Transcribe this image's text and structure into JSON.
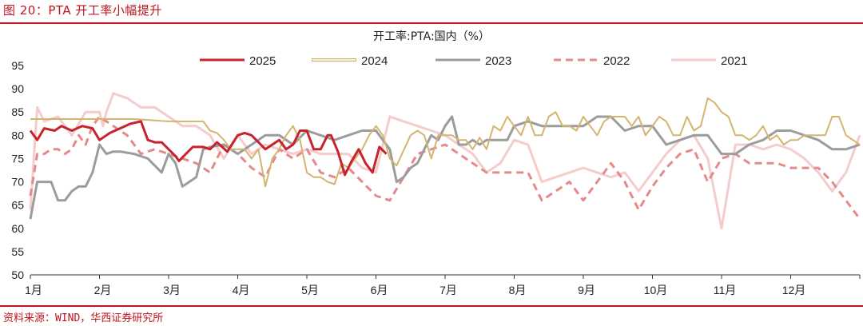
{
  "header": {
    "title": "图 20：PTA 开工率小幅提升"
  },
  "footer": {
    "source": "资料来源：WIND，华西证券研究所"
  },
  "colors": {
    "accent": "#c0141c"
  },
  "chart_data": {
    "type": "line",
    "title": "开工率:PTA:国内（%）",
    "xlabel": "",
    "ylabel": "",
    "ylim": [
      50,
      95
    ],
    "yticks": [
      50,
      55,
      60,
      65,
      70,
      75,
      80,
      85,
      90,
      95
    ],
    "xlim": [
      0,
      12
    ],
    "xticks": [
      "1月",
      "2月",
      "3月",
      "4月",
      "5月",
      "6月",
      "7月",
      "8月",
      "9月",
      "10月",
      "11月",
      "12月"
    ],
    "grid": false,
    "legend_position": "top",
    "series": [
      {
        "name": "2025",
        "color": "#c8232c",
        "style": "solid",
        "width": 3,
        "x": [
          0.0,
          0.1,
          0.2,
          0.35,
          0.45,
          0.6,
          0.75,
          0.9,
          1.0,
          1.15,
          1.3,
          1.45,
          1.6,
          1.7,
          1.8,
          1.9,
          2.0,
          2.1,
          2.15,
          2.25,
          2.35,
          2.5,
          2.6,
          2.7,
          2.85,
          3.0,
          3.1,
          3.2,
          3.4,
          3.5,
          3.6,
          3.7,
          3.8,
          3.9,
          4.0,
          4.1,
          4.2,
          4.3,
          4.35,
          4.45,
          4.55,
          4.65,
          4.75,
          4.85,
          4.95,
          5.05,
          5.15
        ],
        "y": [
          81,
          79,
          81.5,
          81,
          82,
          81,
          82,
          81.5,
          79,
          80.5,
          81.5,
          82.5,
          83,
          79,
          78.5,
          78.5,
          77,
          75.5,
          74.5,
          76,
          77.5,
          77.5,
          77,
          78.5,
          76.5,
          80,
          80.5,
          80,
          77,
          78,
          79,
          77,
          78,
          81,
          81,
          77,
          77,
          80,
          80,
          76.5,
          71.5,
          74.5,
          77,
          74,
          72,
          77.5,
          76
        ]
      },
      {
        "name": "2024",
        "color": "#d4b570",
        "style": "solid",
        "width": 2,
        "x": [
          0.0,
          0.5,
          1.0,
          1.1,
          1.5,
          2.0,
          2.2,
          2.25,
          2.3,
          2.5,
          2.6,
          2.7,
          2.8,
          2.9,
          3.0,
          3.1,
          3.2,
          3.3,
          3.4,
          3.5,
          3.6,
          3.7,
          3.8,
          3.9,
          4.0,
          4.1,
          4.2,
          4.3,
          4.4,
          4.5,
          4.6,
          4.7,
          4.8,
          4.9,
          5.0,
          5.1,
          5.2,
          5.3,
          5.5,
          5.6,
          5.7,
          5.8,
          5.9,
          6.0,
          6.1,
          6.2,
          6.3,
          6.4,
          6.5,
          6.6,
          6.7,
          6.8,
          6.9,
          7.0,
          7.1,
          7.2,
          7.3,
          7.4,
          7.5,
          7.6,
          7.7,
          7.8,
          7.9,
          8.0,
          8.1,
          8.2,
          8.3,
          8.4,
          8.5,
          8.6,
          8.7,
          8.8,
          8.9,
          9.0,
          9.1,
          9.2,
          9.3,
          9.4,
          9.5,
          9.6,
          9.7,
          9.8,
          9.9,
          10.0,
          10.1,
          10.2,
          10.3,
          10.4,
          10.5,
          10.6,
          10.7,
          10.8,
          10.9,
          11.0,
          11.1,
          11.2,
          11.3,
          11.4,
          11.5,
          11.6,
          11.7,
          11.8,
          11.9,
          12.0
        ],
        "y": [
          83.5,
          83.5,
          83.5,
          83.5,
          83.5,
          83,
          83,
          83,
          83,
          83,
          81,
          80.5,
          79,
          77,
          77,
          77,
          75,
          77,
          69,
          75,
          77,
          80,
          82,
          79,
          72,
          71,
          71,
          70,
          69.5,
          74,
          73,
          75,
          77,
          80,
          82,
          80,
          75,
          73.5,
          80,
          81,
          80,
          75,
          80,
          80,
          80,
          79,
          79,
          77,
          79.5,
          77,
          82,
          81,
          84,
          82,
          80,
          84,
          80,
          80,
          84,
          85,
          82,
          82,
          81,
          84,
          82,
          80,
          83,
          84,
          84,
          84,
          82,
          84,
          80,
          82,
          84,
          83,
          80,
          80,
          84,
          81,
          82,
          88,
          87,
          85,
          84,
          80,
          80,
          79,
          80,
          82,
          79,
          80,
          78,
          79,
          79,
          80,
          80,
          80,
          80,
          84,
          84,
          80,
          79,
          78
        ]
      },
      {
        "name": "2023",
        "color": "#9c9c9c",
        "style": "solid",
        "width": 3,
        "x": [
          0.0,
          0.05,
          0.1,
          0.2,
          0.3,
          0.4,
          0.5,
          0.6,
          0.7,
          0.8,
          0.9,
          1.0,
          1.1,
          1.2,
          1.3,
          1.5,
          1.7,
          1.9,
          2.0,
          2.1,
          2.2,
          2.3,
          2.4,
          2.5,
          2.6,
          2.8,
          3.0,
          3.2,
          3.4,
          3.6,
          3.8,
          4.0,
          4.2,
          4.4,
          4.6,
          4.8,
          5.0,
          5.1,
          5.2,
          5.3,
          5.4,
          5.5,
          5.6,
          5.7,
          5.8,
          5.9,
          6.0,
          6.1,
          6.2,
          6.3,
          6.4,
          6.5,
          6.6,
          6.7,
          6.8,
          6.9,
          7.0,
          7.2,
          7.4,
          7.6,
          7.8,
          8.0,
          8.2,
          8.4,
          8.6,
          8.8,
          9.0,
          9.2,
          9.4,
          9.6,
          9.8,
          10.0,
          10.2,
          10.4,
          10.6,
          10.8,
          11.0,
          11.2,
          11.4,
          11.6,
          11.8,
          12.0
        ],
        "y": [
          62,
          66,
          70,
          70,
          70,
          66,
          66,
          68,
          69,
          69,
          72,
          78,
          76,
          76.5,
          76.5,
          76,
          75,
          72,
          76,
          74,
          69,
          70,
          71,
          77,
          77.5,
          78,
          76,
          78,
          80,
          80,
          78,
          81,
          80,
          79,
          80,
          81,
          81,
          79,
          77,
          70,
          71,
          73,
          74,
          77,
          80,
          79,
          82,
          84,
          78,
          78,
          79,
          78,
          79,
          79,
          79,
          79,
          82,
          83,
          82,
          82,
          82,
          82,
          84,
          84,
          81,
          82,
          82,
          78,
          79,
          80,
          80,
          76,
          76,
          78,
          79,
          81,
          81,
          80,
          79,
          77,
          77,
          78
        ]
      },
      {
        "name": "2022",
        "color": "#e48a8a",
        "style": "dashed",
        "width": 3,
        "x": [
          0.0,
          0.1,
          0.2,
          0.3,
          0.4,
          0.5,
          0.6,
          0.7,
          0.8,
          0.9,
          1.0,
          1.2,
          1.4,
          1.6,
          1.8,
          2.0,
          2.2,
          2.4,
          2.6,
          2.8,
          3.0,
          3.2,
          3.4,
          3.6,
          3.8,
          4.0,
          4.2,
          4.4,
          4.6,
          4.8,
          5.0,
          5.2,
          5.4,
          5.6,
          5.8,
          6.0,
          6.2,
          6.4,
          6.6,
          6.8,
          7.0,
          7.2,
          7.4,
          7.6,
          7.8,
          8.0,
          8.2,
          8.4,
          8.6,
          8.8,
          9.0,
          9.2,
          9.4,
          9.6,
          9.8,
          10.0,
          10.2,
          10.4,
          10.6,
          10.8,
          11.0,
          11.2,
          11.4,
          11.6,
          11.8,
          12.0
        ],
        "y": [
          67,
          76,
          76,
          77,
          77,
          76,
          77,
          80,
          78,
          82,
          84,
          82,
          80,
          76,
          77,
          76,
          75,
          74,
          72,
          78,
          76,
          73,
          71,
          77,
          75,
          77,
          72,
          71,
          73,
          70,
          67,
          66,
          71,
          76,
          77,
          78,
          76,
          74,
          72,
          72,
          72,
          72,
          66,
          68,
          70,
          66,
          70,
          74,
          70,
          64,
          69,
          73,
          76,
          77,
          70,
          75,
          76,
          74,
          74,
          74,
          73,
          73,
          73,
          70,
          66,
          62
        ]
      },
      {
        "name": "2021",
        "color": "#f5cccc",
        "style": "solid",
        "width": 3,
        "x": [
          0.0,
          0.1,
          0.2,
          0.4,
          0.6,
          0.8,
          1.0,
          1.05,
          1.1,
          1.2,
          1.4,
          1.6,
          1.8,
          2.0,
          2.2,
          2.4,
          2.6,
          2.8,
          3.0,
          3.2,
          3.4,
          3.6,
          3.8,
          4.0,
          4.2,
          4.4,
          4.6,
          4.8,
          5.0,
          5.2,
          5.4,
          5.6,
          5.8,
          6.0,
          6.2,
          6.4,
          6.6,
          6.8,
          7.0,
          7.2,
          7.4,
          7.6,
          7.8,
          8.0,
          8.2,
          8.4,
          8.6,
          8.8,
          9.0,
          9.2,
          9.4,
          9.6,
          9.8,
          10.0,
          10.2,
          10.4,
          10.6,
          10.8,
          11.0,
          11.2,
          11.4,
          11.6,
          11.8,
          12.0
        ],
        "y": [
          64,
          86,
          83,
          84,
          80,
          85,
          85,
          82,
          85,
          89,
          88,
          86,
          86,
          84,
          82,
          82,
          80,
          75,
          80,
          76,
          78,
          77,
          76,
          77,
          76,
          76,
          76,
          73,
          72,
          84,
          83,
          82,
          81,
          80,
          78,
          76,
          72,
          74,
          79,
          78,
          70,
          71,
          72,
          73,
          72,
          71,
          72,
          68,
          72,
          76,
          79,
          80,
          75,
          60,
          78,
          78,
          77,
          78,
          77,
          75,
          72,
          68,
          72,
          80
        ]
      }
    ]
  }
}
